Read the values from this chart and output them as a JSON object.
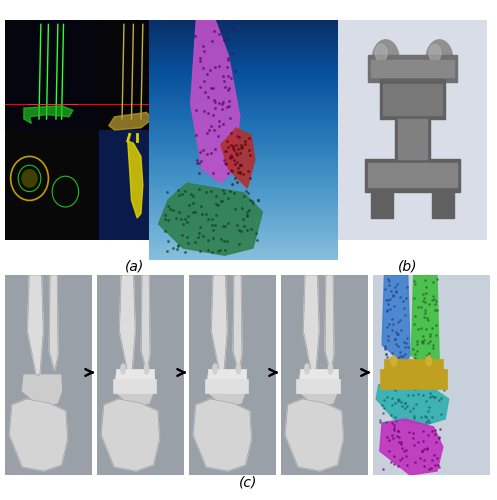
{
  "figure_width": 4.97,
  "figure_height": 5.0,
  "dpi": 100,
  "background_color": "#ffffff",
  "label_a": "(a)",
  "label_b": "(b)",
  "label_c": "(c)",
  "label_fontsize": 10,
  "label_fontstyle": "italic",
  "arrow_color": "#000000",
  "ct_scan_bg": "#000000",
  "ct_scan_blue_bg": "#1a3a6e",
  "bone_3d_bg_top": "#b8cce4",
  "bone_3d_bg_bottom": "#6a9fd8",
  "prosthesis_bg": "#d0d8e8",
  "gray_panel_bg": "#9aa0a8",
  "bone_color_purple": "#c060c0",
  "bone_color_green": "#408040",
  "bone_color_red": "#c04040",
  "bone_color_blue": "#4080c0",
  "bone_color_light_green": "#60c060",
  "bone_color_cyan": "#40c0c0",
  "bone_color_magenta": "#c040c0",
  "prosthesis_dark": "#505050",
  "prosthesis_mid": "#707070",
  "prosthesis_light": "#a0a0a0"
}
